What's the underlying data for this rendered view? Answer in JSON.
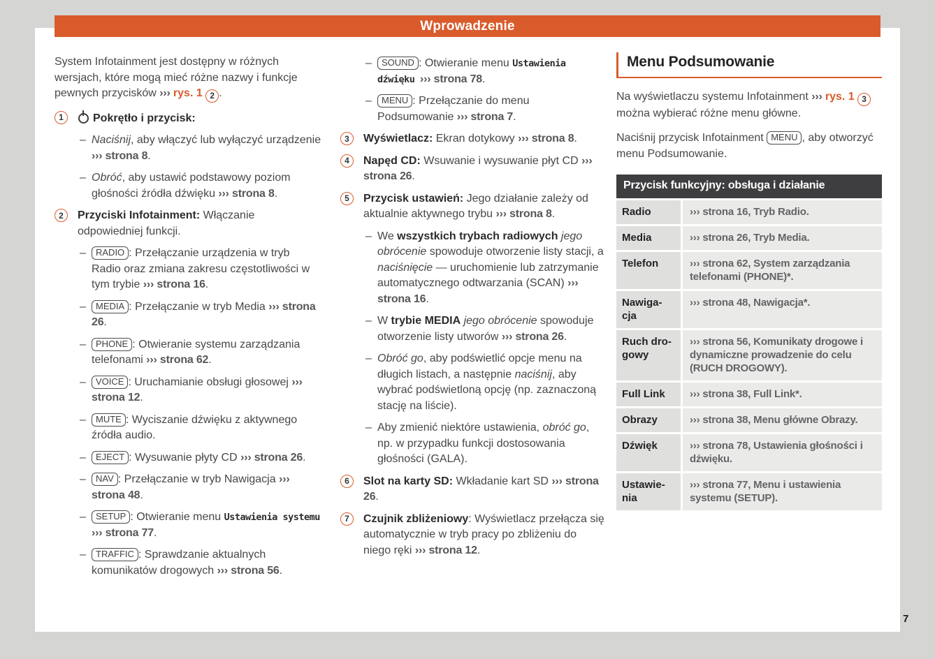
{
  "header": {
    "title": "Wprowadzenie"
  },
  "page": {
    "number": "7"
  },
  "colors": {
    "accent_orange": "#d95b2b",
    "table_header_bg": "#3e3e40",
    "page_bg": "#d5d5d3"
  },
  "columns": {
    "left": {
      "blocks": [
        {
          "type": "para",
          "segments": [
            {
              "t": "System Infotainment jest dostępny w różnych wersjach, które mogą mieć różne nazwy i funkcje pewnych przycisków ",
              "s": ""
            },
            {
              "t": "››› ",
              "s": "ref"
            },
            {
              "t": "rys. 1 ",
              "s": "orange"
            },
            {
              "t": "2",
              "s": "circ"
            },
            {
              "t": ".",
              "s": ""
            }
          ]
        },
        {
          "type": "num",
          "num": "1",
          "segments": [
            {
              "s": "knob"
            },
            {
              "t": "Pokrętło i przycisk:",
              "s": "b"
            }
          ]
        },
        {
          "type": "dash",
          "segments": [
            {
              "t": "Naciśnij",
              "s": "i"
            },
            {
              "t": ", aby włączyć lub wyłączyć urządzenie ",
              "s": ""
            },
            {
              "t": "››› strona 8",
              "s": "ref"
            },
            {
              "t": ".",
              "s": ""
            }
          ]
        },
        {
          "type": "dash",
          "segments": [
            {
              "t": "Obróć",
              "s": "i"
            },
            {
              "t": ", aby ustawić podstawowy poziom głośności źródła dźwięku ",
              "s": ""
            },
            {
              "t": "››› strona 8",
              "s": "ref"
            },
            {
              "t": ".",
              "s": ""
            }
          ]
        },
        {
          "type": "num",
          "num": "2",
          "segments": [
            {
              "t": "Przyciski Infotainment:",
              "s": "b"
            },
            {
              "t": " Włączanie odpowiedniej funkcji.",
              "s": ""
            }
          ]
        },
        {
          "type": "dash",
          "segments": [
            {
              "t": "RADIO",
              "s": "key"
            },
            {
              "t": ": Przełączanie urządzenia w tryb Radio oraz zmiana zakresu częstotliwości w tym trybie ",
              "s": ""
            },
            {
              "t": "››› strona 16",
              "s": "ref"
            },
            {
              "t": ".",
              "s": ""
            }
          ]
        },
        {
          "type": "dash",
          "segments": [
            {
              "t": "MEDIA",
              "s": "key"
            },
            {
              "t": ": Przełączanie w tryb Media ",
              "s": ""
            },
            {
              "t": "››› strona 26",
              "s": "ref"
            },
            {
              "t": ".",
              "s": ""
            }
          ]
        },
        {
          "type": "dash",
          "segments": [
            {
              "t": "PHONE",
              "s": "key"
            },
            {
              "t": ": Otwieranie systemu zarządzania telefonami ",
              "s": ""
            },
            {
              "t": "››› strona 62",
              "s": "ref"
            },
            {
              "t": ".",
              "s": ""
            }
          ]
        },
        {
          "type": "dash",
          "segments": [
            {
              "t": "VOICE",
              "s": "key"
            },
            {
              "t": ": Uruchamianie obsługi głosowej ",
              "s": ""
            },
            {
              "t": "››› strona 12",
              "s": "ref"
            },
            {
              "t": ".",
              "s": ""
            }
          ]
        },
        {
          "type": "dash",
          "segments": [
            {
              "t": "MUTE",
              "s": "key"
            },
            {
              "t": ": Wyciszanie dźwięku z aktywnego źródła audio.",
              "s": ""
            }
          ]
        },
        {
          "type": "dash",
          "segments": [
            {
              "t": "EJECT",
              "s": "key"
            },
            {
              "t": ": Wysuwanie płyty CD ",
              "s": ""
            },
            {
              "t": "››› strona 26",
              "s": "ref"
            },
            {
              "t": ".",
              "s": ""
            }
          ]
        },
        {
          "type": "dash",
          "segments": [
            {
              "t": "NAV",
              "s": "key"
            },
            {
              "t": ": Przełączanie w tryb Nawigacja ",
              "s": ""
            },
            {
              "t": "››› strona 48",
              "s": "ref"
            },
            {
              "t": ".",
              "s": ""
            }
          ]
        },
        {
          "type": "dash",
          "segments": [
            {
              "t": "SETUP",
              "s": "key"
            },
            {
              "t": ": Otwieranie menu ",
              "s": ""
            },
            {
              "t": "Ustawienia systemu ",
              "s": "mono"
            },
            {
              "t": "››› strona 77",
              "s": "ref"
            },
            {
              "t": ".",
              "s": ""
            }
          ]
        },
        {
          "type": "dash",
          "segments": [
            {
              "t": "TRAFFIC",
              "s": "key"
            },
            {
              "t": ": Sprawdzanie aktualnych komunikatów drogowych ",
              "s": ""
            },
            {
              "t": "››› strona 56",
              "s": "ref"
            },
            {
              "t": ".",
              "s": ""
            }
          ]
        }
      ]
    },
    "middle": {
      "blocks": [
        {
          "type": "dash",
          "segments": [
            {
              "t": "SOUND",
              "s": "key"
            },
            {
              "t": ": Otwieranie menu ",
              "s": ""
            },
            {
              "t": "Ustawienia dźwięku ",
              "s": "mono"
            },
            {
              "t": "››› strona 78",
              "s": "ref"
            },
            {
              "t": ".",
              "s": ""
            }
          ]
        },
        {
          "type": "dash",
          "segments": [
            {
              "t": "MENU",
              "s": "key"
            },
            {
              "t": ": Przełączanie do menu Podsumowanie ",
              "s": ""
            },
            {
              "t": "››› strona 7",
              "s": "ref"
            },
            {
              "t": ".",
              "s": ""
            }
          ]
        },
        {
          "type": "num",
          "num": "3",
          "segments": [
            {
              "t": "Wyświetlacz:",
              "s": "b"
            },
            {
              "t": " Ekran dotykowy ",
              "s": ""
            },
            {
              "t": "››› strona 8",
              "s": "ref"
            },
            {
              "t": ".",
              "s": ""
            }
          ]
        },
        {
          "type": "num",
          "num": "4",
          "segments": [
            {
              "t": "Napęd CD:",
              "s": "b"
            },
            {
              "t": " Wsuwanie i wysuwanie płyt CD ",
              "s": ""
            },
            {
              "t": "››› strona 26",
              "s": "ref"
            },
            {
              "t": ".",
              "s": ""
            }
          ]
        },
        {
          "type": "num",
          "num": "5",
          "segments": [
            {
              "t": "Przycisk ustawień:",
              "s": "b"
            },
            {
              "t": " Jego działanie zależy od aktualnie aktywnego trybu ",
              "s": ""
            },
            {
              "t": "››› strona 8",
              "s": "ref"
            },
            {
              "t": ".",
              "s": ""
            }
          ]
        },
        {
          "type": "dash",
          "segments": [
            {
              "t": "We ",
              "s": ""
            },
            {
              "t": "wszystkich trybach radiowych",
              "s": "b"
            },
            {
              "t": " ",
              "s": ""
            },
            {
              "t": "jego obrócenie",
              "s": "i"
            },
            {
              "t": " spowoduje otworzenie listy stacji, a ",
              "s": ""
            },
            {
              "t": "naciśnięcie",
              "s": "i"
            },
            {
              "t": " — uruchomienie lub zatrzymanie automatycznego odtwarzania (SCAN) ",
              "s": ""
            },
            {
              "t": "››› strona 16",
              "s": "ref"
            },
            {
              "t": ".",
              "s": ""
            }
          ]
        },
        {
          "type": "dash",
          "segments": [
            {
              "t": "W ",
              "s": ""
            },
            {
              "t": "trybie MEDIA",
              "s": "b"
            },
            {
              "t": " ",
              "s": ""
            },
            {
              "t": "jego obrócenie",
              "s": "i"
            },
            {
              "t": " spowoduje otworzenie listy utworów ",
              "s": ""
            },
            {
              "t": "››› strona 26",
              "s": "ref"
            },
            {
              "t": ".",
              "s": ""
            }
          ]
        },
        {
          "type": "dash",
          "segments": [
            {
              "t": "Obróć go",
              "s": "i"
            },
            {
              "t": ", aby podświetlić opcje menu na długich listach, a następnie ",
              "s": ""
            },
            {
              "t": "naciśnij",
              "s": "i"
            },
            {
              "t": ", aby wybrać podświetloną opcję (np. zaznaczoną stację na liście).",
              "s": ""
            }
          ]
        },
        {
          "type": "dash",
          "segments": [
            {
              "t": "Aby zmienić niektóre ustawienia, ",
              "s": ""
            },
            {
              "t": "obróć go",
              "s": "i"
            },
            {
              "t": ", np. w przypadku funkcji dostosowania głośności (GALA).",
              "s": ""
            }
          ]
        },
        {
          "type": "num",
          "num": "6",
          "segments": [
            {
              "t": "Slot na karty SD:",
              "s": "b"
            },
            {
              "t": " Wkładanie kart SD ",
              "s": ""
            },
            {
              "t": "››› strona 26",
              "s": "ref"
            },
            {
              "t": ".",
              "s": ""
            }
          ]
        },
        {
          "type": "num",
          "num": "7",
          "segments": [
            {
              "t": "Czujnik zbliżeniowy",
              "s": "b"
            },
            {
              "t": ": Wyświetlacz przełącza się automatycznie w tryb pracy po zbliżeniu do niego ręki ",
              "s": ""
            },
            {
              "t": "››› strona 12",
              "s": "ref"
            },
            {
              "t": ".",
              "s": ""
            }
          ]
        }
      ]
    },
    "right": {
      "heading": "Menu Podsumowanie",
      "paragraphs": [
        {
          "type": "para",
          "segments": [
            {
              "t": "Na wyświetlaczu systemu Infotainment ",
              "s": ""
            },
            {
              "t": "››› ",
              "s": "ref"
            },
            {
              "t": "rys. 1 ",
              "s": "orange"
            },
            {
              "t": "3",
              "s": "circ"
            },
            {
              "t": " można wybierać różne menu główne.",
              "s": ""
            }
          ]
        },
        {
          "type": "para",
          "segments": [
            {
              "t": "Naciśnij przycisk Infotainment ",
              "s": ""
            },
            {
              "t": "MENU",
              "s": "key"
            },
            {
              "t": ", aby otworzyć menu Podsumowanie.",
              "s": ""
            }
          ]
        }
      ],
      "table": {
        "header": "Przycisk funkcyjny: obsługa i działanie",
        "rows": [
          {
            "key": "Radio",
            "value": "››› strona 16, Tryb Radio."
          },
          {
            "key": "Media",
            "value": "››› strona 26, Tryb Media."
          },
          {
            "key": "Telefon",
            "value": "››› strona 62, System zarządzania telefonami (PHONE)*."
          },
          {
            "key": "Nawiga-\ncja",
            "value": "››› strona 48, Nawigacja*."
          },
          {
            "key": "Ruch dro-\ngowy",
            "value": "››› strona 56, Komunikaty drogowe i dynamiczne prowadzenie do celu (RUCH DROGOWY)."
          },
          {
            "key": "Full Link",
            "value": "››› strona 38, Full Link*."
          },
          {
            "key": "Obrazy",
            "value": "››› strona 38, Menu główne Obrazy."
          },
          {
            "key": "Dźwięk",
            "value": "››› strona 78, Ustawienia głośności i dźwięku."
          },
          {
            "key": "Ustawie-\nnia",
            "value": "››› strona 77, Menu i ustawienia systemu (SETUP)."
          }
        ]
      }
    }
  }
}
